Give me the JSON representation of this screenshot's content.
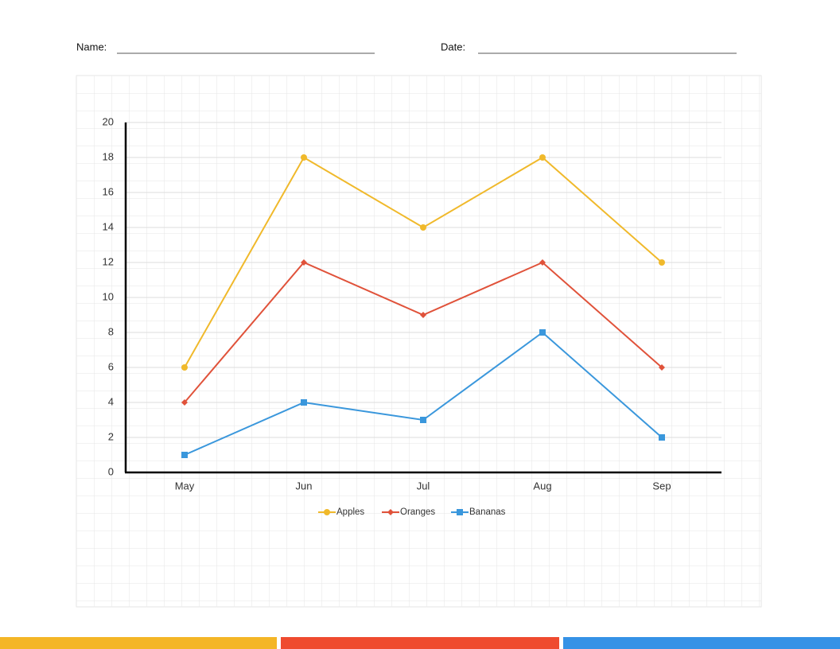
{
  "header": {
    "name_label": "Name:",
    "date_label": "Date:"
  },
  "chart_data": {
    "type": "line",
    "categories": [
      "May",
      "Jun",
      "Jul",
      "Aug",
      "Sep"
    ],
    "series": [
      {
        "name": "Apples",
        "color": "#f0b92b",
        "marker": "circle",
        "values": [
          6,
          18,
          14,
          18,
          12
        ]
      },
      {
        "name": "Oranges",
        "color": "#e0523a",
        "marker": "diamond",
        "values": [
          4,
          12,
          9,
          12,
          6
        ]
      },
      {
        "name": "Bananas",
        "color": "#3a97dc",
        "marker": "square",
        "values": [
          1,
          4,
          3,
          8,
          2
        ]
      }
    ],
    "ylim": [
      0,
      20
    ],
    "yticks": [
      0,
      2,
      4,
      6,
      8,
      10,
      12,
      14,
      16,
      18,
      20
    ],
    "grid": true,
    "legend": "bottom"
  }
}
